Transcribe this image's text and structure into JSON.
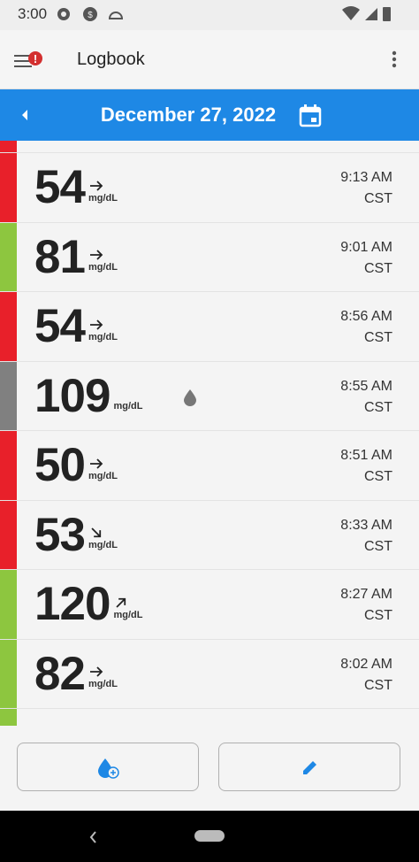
{
  "status_bar": {
    "time": "3:00"
  },
  "header": {
    "title": "Logbook",
    "date": "December 27, 2022"
  },
  "entries": [
    {
      "value": 54,
      "unit": "mg/dL",
      "time": "9:13 AM",
      "zone": "CST"
    },
    {
      "value": 81,
      "unit": "mg/dL",
      "time": "9:01 AM",
      "zone": "CST"
    },
    {
      "value": 54,
      "unit": "mg/dL",
      "time": "8:56 AM",
      "zone": "CST"
    },
    {
      "value": 109,
      "unit": "mg/dL",
      "time": "8:55 AM",
      "zone": "CST"
    },
    {
      "value": 50,
      "unit": "mg/dL",
      "time": "8:51 AM",
      "zone": "CST"
    },
    {
      "value": 53,
      "unit": "mg/dL",
      "time": "8:33 AM",
      "zone": "CST"
    },
    {
      "value": 120,
      "unit": "mg/dL",
      "time": "8:27 AM",
      "zone": "CST"
    },
    {
      "value": 82,
      "unit": "mg/dL",
      "time": "8:02 AM",
      "zone": "CST"
    }
  ]
}
